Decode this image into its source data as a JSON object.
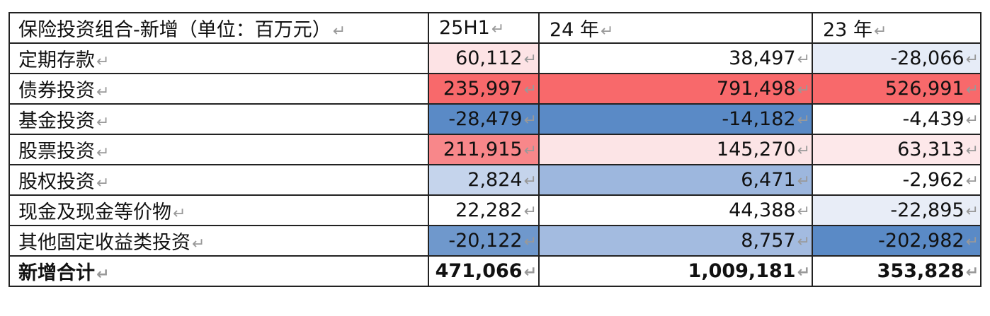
{
  "table": {
    "header": [
      "保险投资组合-新增（单位：百万元）",
      "25H1",
      "24 年",
      "23 年"
    ],
    "rows": [
      {
        "label": "定期存款",
        "values": [
          "60,112",
          "38,497",
          "-28,066"
        ],
        "colors": [
          "#fde3e5",
          "#ffffff",
          "#e6ecf7"
        ]
      },
      {
        "label": "债券投资",
        "values": [
          "235,997",
          "791,498",
          "526,991"
        ],
        "colors": [
          "#f8696b",
          "#f8696b",
          "#f8696b"
        ]
      },
      {
        "label": "基金投资",
        "values": [
          "-28,479",
          "-14,182",
          "-4,439"
        ],
        "colors": [
          "#5a8ac6",
          "#5a8ac6",
          "#ffffff"
        ]
      },
      {
        "label": "股票投资",
        "values": [
          "211,915",
          "145,270",
          "63,313"
        ],
        "colors": [
          "#f8878a",
          "#fce4e6",
          "#fde8ea"
        ]
      },
      {
        "label": "股权投资",
        "values": [
          "2,824",
          "6,471",
          "-2,962"
        ],
        "colors": [
          "#c5d4ec",
          "#9db7de",
          "#ffffff"
        ]
      },
      {
        "label": "现金及现金等价物",
        "values": [
          "22,282",
          "44,388",
          "-22,895"
        ],
        "colors": [
          "#ffffff",
          "#ffffff",
          "#e8edf7"
        ]
      },
      {
        "label": "其他固定收益类投资",
        "values": [
          "-20,122",
          "8,757",
          "-202,982"
        ],
        "colors": [
          "#6f98cc",
          "#a3bbe0",
          "#5a8ac6"
        ]
      }
    ],
    "total": {
      "label": "新增合计",
      "values": [
        "471,066",
        "1,009,181",
        "353,828"
      ]
    }
  },
  "para_mark": "↵"
}
